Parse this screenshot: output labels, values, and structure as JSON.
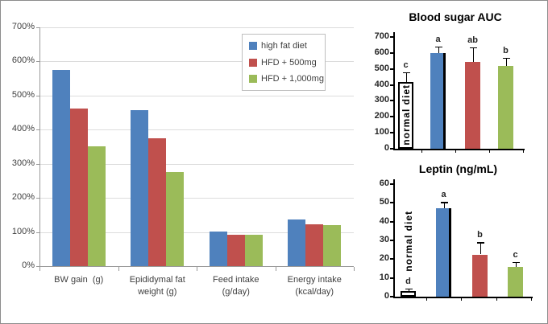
{
  "figure": {
    "background": "#FFFFFF",
    "border_color": "#8C8C8C"
  },
  "palette": {
    "high_fat_diet": "#4F81BD",
    "hfd_500": "#C0504D",
    "hfd_1000": "#9BBB59",
    "normal_diet_bar": "#FFFFFF",
    "gridline": "#DCDCDC",
    "axis_gray": "#9A9A9A",
    "text_dark": "#3F3F3F",
    "black": "#000000"
  },
  "chart_data": [
    {
      "id": "main_percent_chart",
      "type": "bar",
      "title": "",
      "xlabel": "",
      "ylabel": "",
      "ylim": [
        0,
        700
      ],
      "ytick_step": 100,
      "yticks": [
        "0%",
        "100%",
        "200%",
        "300%",
        "400%",
        "500%",
        "600%",
        "700%"
      ],
      "grid": true,
      "legend_position": "top-right-inside",
      "categories": [
        {
          "lines": [
            "BW gain  (g)"
          ]
        },
        {
          "lines": [
            "Epididymal fat",
            "weight (g)"
          ]
        },
        {
          "lines": [
            "Feed intake",
            "(g/day)"
          ]
        },
        {
          "lines": [
            "Energy intake",
            "(kcal/day)"
          ]
        }
      ],
      "series": [
        {
          "name": "high fat diet",
          "color": "#4F81BD",
          "values": [
            575,
            457,
            102,
            137
          ]
        },
        {
          "name": "HFD + 500mg",
          "color": "#C0504D",
          "values": [
            462,
            375,
            93,
            122
          ]
        },
        {
          "name": "HFD + 1,000mg",
          "color": "#9BBB59",
          "values": [
            352,
            275,
            91,
            120
          ]
        }
      ]
    },
    {
      "id": "blood_sugar_auc",
      "type": "bar",
      "title": "Blood sugar AUC",
      "ylim": [
        0,
        700
      ],
      "ytick_step": 100,
      "yticks": [
        "0",
        "100",
        "200",
        "300",
        "400",
        "500",
        "600",
        "700"
      ],
      "grid": false,
      "groups": [
        {
          "name": "normal diet",
          "bar_label": "normal diet",
          "color": "#FFFFFF",
          "value": 420,
          "error": 60,
          "letter": "c"
        },
        {
          "name": "high fat diet",
          "color": "#4F81BD",
          "value": 600,
          "error": 40,
          "letter": "a"
        },
        {
          "name": "HFD + 500mg",
          "color": "#C0504D",
          "value": 545,
          "error": 90,
          "letter": "ab"
        },
        {
          "name": "HFD + 1,000mg",
          "color": "#9BBB59",
          "value": 520,
          "error": 50,
          "letter": "b"
        }
      ]
    },
    {
      "id": "leptin",
      "type": "bar",
      "title": "Leptin (ng/mL)",
      "ylim": [
        0,
        60
      ],
      "ytick_step": 10,
      "yticks": [
        "0",
        "10",
        "20",
        "30",
        "40",
        "50",
        "60"
      ],
      "grid": false,
      "groups": [
        {
          "name": "normal diet",
          "side_label": "normal diet",
          "color": "#FFFFFF",
          "value": 3,
          "error": 1.5,
          "letter": "d"
        },
        {
          "name": "high fat diet",
          "color": "#4F81BD",
          "value": 47,
          "error": 3.5,
          "letter": "a"
        },
        {
          "name": "HFD + 500mg",
          "color": "#C0504D",
          "value": 22.5,
          "error": 6.5,
          "letter": "b"
        },
        {
          "name": "HFD + 1,000mg",
          "color": "#9BBB59",
          "value": 16,
          "error": 2.5,
          "letter": "c"
        }
      ]
    }
  ]
}
